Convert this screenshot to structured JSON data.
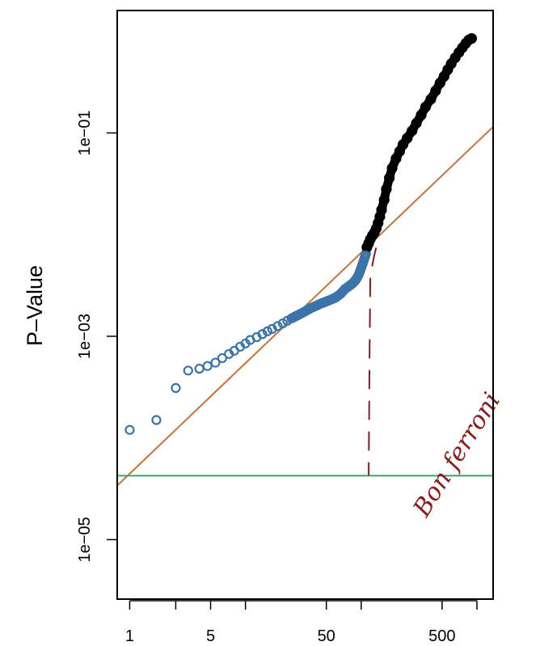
{
  "chart_data": {
    "type": "scatter",
    "title": "",
    "xlabel": "",
    "ylabel": "P–Value",
    "x_scale": "log",
    "y_scale": "log",
    "xlim": [
      0.78,
      1380
    ],
    "ylim": [
      2.6e-06,
      1.6
    ],
    "x_ticks": [
      {
        "value": 1,
        "label": "1"
      },
      {
        "value": 2.5,
        "label": ""
      },
      {
        "value": 5,
        "label": "5"
      },
      {
        "value": 10,
        "label": ""
      },
      {
        "value": 50,
        "label": "50"
      },
      {
        "value": 100,
        "label": ""
      },
      {
        "value": 500,
        "label": "500"
      },
      {
        "value": 1000,
        "label": ""
      }
    ],
    "y_ticks": [
      {
        "value": 1e-05,
        "label": "1e−05"
      },
      {
        "value": 0.001,
        "label": "1e−03"
      },
      {
        "value": 0.1,
        "label": "1e−01"
      }
    ],
    "series": [
      {
        "color": "#3b74a8",
        "marker": "open-circle",
        "x": [
          1,
          1.7,
          2.5,
          3.2,
          4,
          4.7,
          5.5,
          6.3,
          7.2,
          8,
          9,
          10,
          11,
          12.5,
          14,
          15.5,
          17,
          19,
          21,
          23,
          25,
          28,
          31,
          34,
          37,
          41,
          45,
          50,
          55,
          60,
          66,
          72,
          78,
          84,
          90,
          95,
          100,
          105,
          110
        ],
        "y": [
          0.00012,
          0.00015,
          0.00031,
          0.00046,
          0.00048,
          0.00051,
          0.00055,
          0.00061,
          0.00067,
          0.00072,
          0.00079,
          0.00085,
          0.00092,
          0.00098,
          0.00105,
          0.00112,
          0.00118,
          0.00126,
          0.00134,
          0.00142,
          0.0015,
          0.0016,
          0.0017,
          0.0018,
          0.0019,
          0.002,
          0.0021,
          0.0022,
          0.0023,
          0.0024,
          0.0026,
          0.0029,
          0.0031,
          0.0033,
          0.0036,
          0.004,
          0.0047,
          0.0055,
          0.0065
        ]
      },
      {
        "color": "#000000",
        "marker": "filled-circle",
        "x": [
          112,
          116,
          120,
          125,
          130,
          135,
          140,
          145,
          150,
          158,
          165,
          175,
          185,
          200,
          215,
          230,
          250,
          275,
          300,
          330,
          360,
          400,
          440,
          480,
          520,
          560,
          600,
          650,
          700,
          750,
          800,
          850,
          900
        ],
        "y": [
          0.0075,
          0.0082,
          0.009,
          0.0098,
          0.0105,
          0.0115,
          0.013,
          0.015,
          0.0175,
          0.022,
          0.028,
          0.036,
          0.045,
          0.056,
          0.066,
          0.077,
          0.089,
          0.105,
          0.125,
          0.15,
          0.18,
          0.215,
          0.26,
          0.31,
          0.36,
          0.42,
          0.48,
          0.55,
          0.62,
          0.69,
          0.76,
          0.82,
          0.85
        ]
      }
    ],
    "reference_lines": [
      {
        "kind": "diagonal",
        "color": "#c8733a",
        "from": [
          0.78,
          3.4e-05
        ],
        "to": [
          1380,
          0.115
        ]
      },
      {
        "kind": "horizontal",
        "color": "#3fa36a",
        "y": 4.25e-05
      }
    ],
    "annotations": [
      {
        "kind": "handwritten-dashed-vertical",
        "color": "#8b1a1a",
        "x": 118,
        "y_from": 4.35e-05,
        "y_to": 0.0076
      },
      {
        "kind": "handwritten-text",
        "color": "#8b1a1a",
        "text": "Bon ferroni",
        "x": 430,
        "y": 0.00016
      }
    ]
  }
}
